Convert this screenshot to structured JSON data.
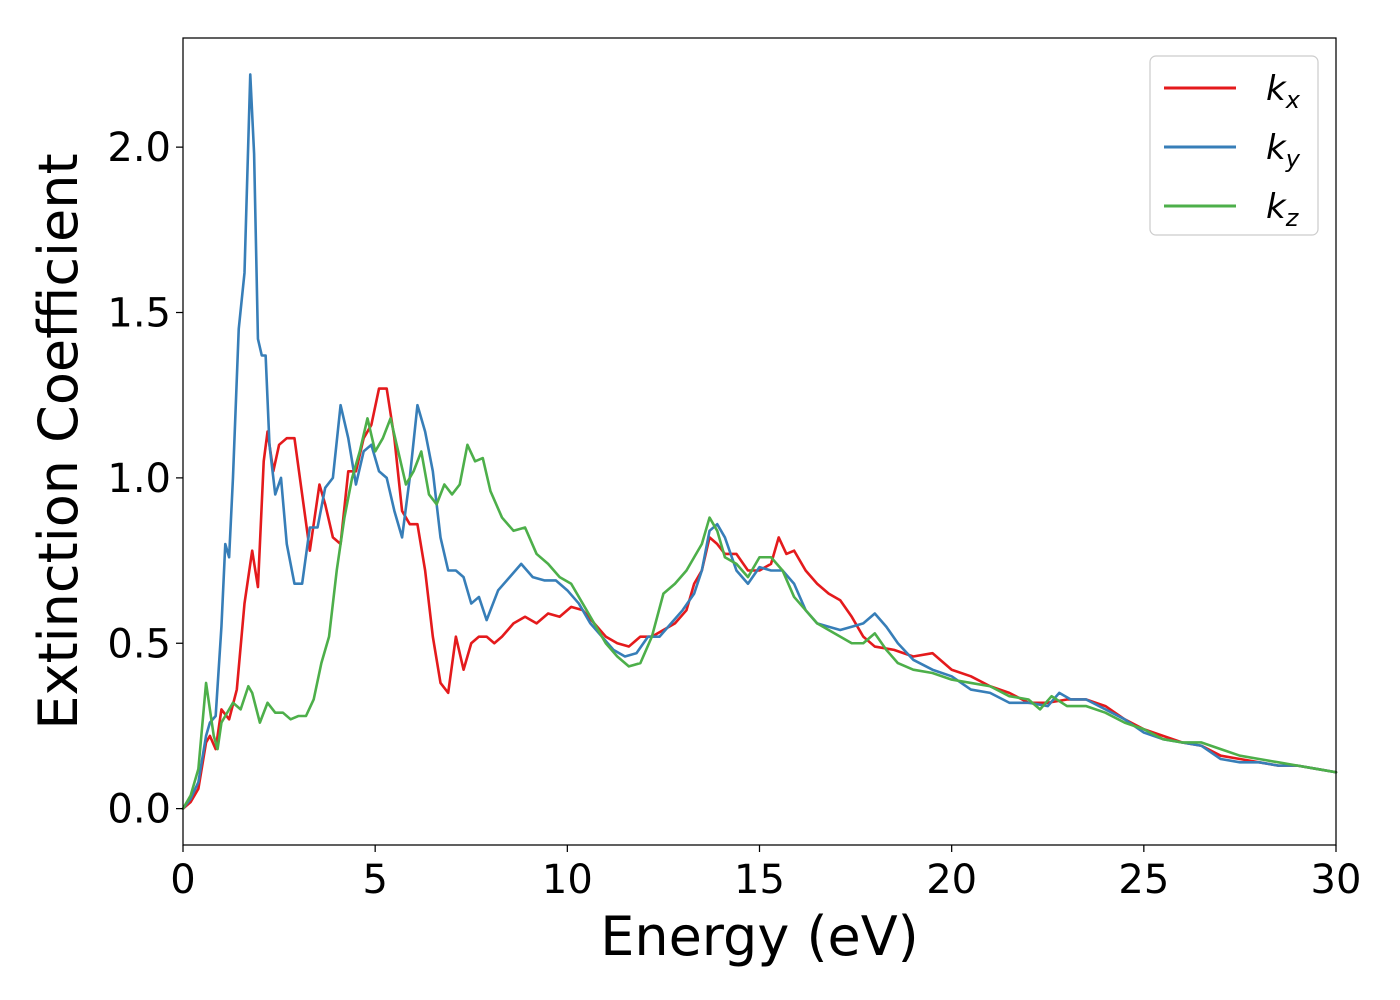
{
  "chart_data": {
    "type": "line",
    "title": "",
    "xlabel": "Energy (eV)",
    "ylabel": "Extinction Coefficient",
    "xlim": [
      0,
      30
    ],
    "ylim": [
      -0.11,
      2.33
    ],
    "xticks": [
      "0",
      "5",
      "10",
      "15",
      "20",
      "25",
      "30"
    ],
    "yticks": [
      "0.0",
      "0.5",
      "1.0",
      "1.5",
      "2.0"
    ],
    "grid": false,
    "legend_position": "top-right",
    "series": [
      {
        "name": "k",
        "name_subscript": "x",
        "color": "#e41a1c",
        "x": [
          0.0,
          0.2,
          0.4,
          0.6,
          0.7,
          0.85,
          1.0,
          1.2,
          1.4,
          1.6,
          1.8,
          1.95,
          2.1,
          2.2,
          2.35,
          2.5,
          2.7,
          2.9,
          3.1,
          3.3,
          3.55,
          3.7,
          3.9,
          4.1,
          4.3,
          4.5,
          4.7,
          4.9,
          5.1,
          5.3,
          5.5,
          5.7,
          5.9,
          6.1,
          6.3,
          6.5,
          6.7,
          6.9,
          7.1,
          7.3,
          7.5,
          7.7,
          7.9,
          8.1,
          8.3,
          8.6,
          8.9,
          9.2,
          9.5,
          9.8,
          10.1,
          10.4,
          10.7,
          11.0,
          11.3,
          11.6,
          11.9,
          12.2,
          12.5,
          12.8,
          13.1,
          13.3,
          13.5,
          13.7,
          13.9,
          14.1,
          14.4,
          14.7,
          15.0,
          15.3,
          15.5,
          15.7,
          15.9,
          16.2,
          16.5,
          16.8,
          17.1,
          17.4,
          17.7,
          18.0,
          18.5,
          19.0,
          19.5,
          20.0,
          20.5,
          21.0,
          21.5,
          22.0,
          22.5,
          23.0,
          23.5,
          24.0,
          24.5,
          25.0,
          25.5,
          26.0,
          26.5,
          27.0,
          27.5,
          28.0,
          28.5,
          29.0,
          29.5,
          30.0
        ],
        "y": [
          0.0,
          0.02,
          0.06,
          0.2,
          0.22,
          0.18,
          0.3,
          0.27,
          0.36,
          0.62,
          0.78,
          0.67,
          1.05,
          1.14,
          1.02,
          1.1,
          1.12,
          1.12,
          0.95,
          0.78,
          0.98,
          0.92,
          0.82,
          0.8,
          1.02,
          1.02,
          1.12,
          1.16,
          1.27,
          1.27,
          1.12,
          0.9,
          0.86,
          0.86,
          0.72,
          0.52,
          0.38,
          0.35,
          0.52,
          0.42,
          0.5,
          0.52,
          0.52,
          0.5,
          0.52,
          0.56,
          0.58,
          0.56,
          0.59,
          0.58,
          0.61,
          0.6,
          0.56,
          0.52,
          0.5,
          0.49,
          0.52,
          0.52,
          0.54,
          0.56,
          0.6,
          0.68,
          0.72,
          0.82,
          0.8,
          0.77,
          0.77,
          0.72,
          0.72,
          0.74,
          0.82,
          0.77,
          0.78,
          0.72,
          0.68,
          0.65,
          0.63,
          0.58,
          0.52,
          0.49,
          0.48,
          0.46,
          0.47,
          0.42,
          0.4,
          0.37,
          0.35,
          0.32,
          0.32,
          0.33,
          0.33,
          0.31,
          0.27,
          0.24,
          0.22,
          0.2,
          0.19,
          0.16,
          0.15,
          0.14,
          0.13,
          0.13,
          0.12,
          0.11
        ]
      },
      {
        "name": "k",
        "name_subscript": "y",
        "color": "#377eb8",
        "x": [
          0.0,
          0.2,
          0.4,
          0.6,
          0.7,
          0.85,
          1.0,
          1.1,
          1.2,
          1.3,
          1.45,
          1.6,
          1.75,
          1.85,
          1.95,
          2.05,
          2.15,
          2.25,
          2.4,
          2.55,
          2.7,
          2.9,
          3.1,
          3.3,
          3.5,
          3.7,
          3.9,
          4.1,
          4.3,
          4.5,
          4.7,
          4.9,
          5.1,
          5.3,
          5.5,
          5.7,
          5.9,
          6.1,
          6.3,
          6.5,
          6.7,
          6.9,
          7.1,
          7.3,
          7.5,
          7.7,
          7.9,
          8.2,
          8.5,
          8.8,
          9.1,
          9.4,
          9.7,
          10.0,
          10.3,
          10.6,
          10.9,
          11.2,
          11.5,
          11.8,
          12.1,
          12.4,
          12.7,
          13.0,
          13.3,
          13.5,
          13.7,
          13.9,
          14.1,
          14.4,
          14.7,
          15.0,
          15.3,
          15.6,
          15.9,
          16.2,
          16.5,
          16.8,
          17.1,
          17.4,
          17.7,
          18.0,
          18.3,
          18.6,
          19.0,
          19.5,
          20.0,
          20.5,
          21.0,
          21.5,
          22.0,
          22.5,
          22.8,
          23.1,
          23.5,
          24.0,
          24.5,
          25.0,
          25.5,
          26.0,
          26.5,
          27.0,
          27.5,
          28.0,
          28.5,
          29.0,
          29.5,
          30.0
        ],
        "y": [
          0.0,
          0.03,
          0.08,
          0.22,
          0.26,
          0.28,
          0.55,
          0.8,
          0.76,
          1.0,
          1.45,
          1.62,
          2.22,
          1.98,
          1.42,
          1.37,
          1.37,
          1.1,
          0.95,
          1.0,
          0.8,
          0.68,
          0.68,
          0.85,
          0.85,
          0.97,
          1.0,
          1.22,
          1.12,
          0.98,
          1.08,
          1.1,
          1.02,
          1.0,
          0.9,
          0.82,
          1.0,
          1.22,
          1.14,
          1.02,
          0.82,
          0.72,
          0.72,
          0.7,
          0.62,
          0.64,
          0.57,
          0.66,
          0.7,
          0.74,
          0.7,
          0.69,
          0.69,
          0.66,
          0.62,
          0.56,
          0.52,
          0.48,
          0.46,
          0.47,
          0.52,
          0.52,
          0.56,
          0.6,
          0.65,
          0.72,
          0.84,
          0.86,
          0.82,
          0.72,
          0.68,
          0.73,
          0.72,
          0.72,
          0.68,
          0.6,
          0.56,
          0.55,
          0.54,
          0.55,
          0.56,
          0.59,
          0.55,
          0.5,
          0.45,
          0.42,
          0.4,
          0.36,
          0.35,
          0.32,
          0.32,
          0.31,
          0.35,
          0.33,
          0.33,
          0.3,
          0.27,
          0.23,
          0.21,
          0.2,
          0.19,
          0.15,
          0.14,
          0.14,
          0.13,
          0.13,
          0.12,
          0.11
        ]
      },
      {
        "name": "k",
        "name_subscript": "z",
        "color": "#4daf4a",
        "x": [
          0.0,
          0.2,
          0.4,
          0.6,
          0.7,
          0.8,
          0.9,
          1.0,
          1.1,
          1.3,
          1.5,
          1.7,
          1.8,
          2.0,
          2.2,
          2.4,
          2.6,
          2.8,
          3.0,
          3.2,
          3.4,
          3.6,
          3.8,
          4.0,
          4.2,
          4.4,
          4.6,
          4.8,
          5.0,
          5.2,
          5.4,
          5.6,
          5.8,
          6.0,
          6.2,
          6.4,
          6.6,
          6.8,
          7.0,
          7.2,
          7.4,
          7.6,
          7.8,
          8.0,
          8.3,
          8.6,
          8.9,
          9.2,
          9.5,
          9.8,
          10.1,
          10.4,
          10.7,
          11.0,
          11.3,
          11.6,
          11.9,
          12.2,
          12.5,
          12.8,
          13.1,
          13.3,
          13.5,
          13.7,
          13.9,
          14.1,
          14.4,
          14.7,
          15.0,
          15.3,
          15.6,
          15.9,
          16.2,
          16.5,
          16.8,
          17.1,
          17.4,
          17.7,
          18.0,
          18.3,
          18.6,
          19.0,
          19.5,
          20.0,
          20.5,
          21.0,
          21.5,
          22.0,
          22.3,
          22.6,
          23.0,
          23.5,
          24.0,
          24.5,
          25.0,
          25.5,
          26.0,
          26.5,
          27.0,
          27.5,
          28.0,
          28.5,
          29.0,
          29.5,
          30.0
        ],
        "y": [
          0.0,
          0.04,
          0.12,
          0.38,
          0.3,
          0.22,
          0.18,
          0.26,
          0.28,
          0.32,
          0.3,
          0.37,
          0.35,
          0.26,
          0.32,
          0.29,
          0.29,
          0.27,
          0.28,
          0.28,
          0.33,
          0.44,
          0.52,
          0.72,
          0.88,
          1.0,
          1.08,
          1.18,
          1.08,
          1.12,
          1.18,
          1.08,
          0.98,
          1.02,
          1.08,
          0.95,
          0.92,
          0.98,
          0.95,
          0.98,
          1.1,
          1.05,
          1.06,
          0.96,
          0.88,
          0.84,
          0.85,
          0.77,
          0.74,
          0.7,
          0.68,
          0.62,
          0.56,
          0.5,
          0.46,
          0.43,
          0.44,
          0.52,
          0.65,
          0.68,
          0.72,
          0.76,
          0.8,
          0.88,
          0.84,
          0.76,
          0.74,
          0.7,
          0.76,
          0.76,
          0.72,
          0.64,
          0.6,
          0.56,
          0.54,
          0.52,
          0.5,
          0.5,
          0.53,
          0.48,
          0.44,
          0.42,
          0.41,
          0.39,
          0.38,
          0.37,
          0.34,
          0.33,
          0.3,
          0.34,
          0.31,
          0.31,
          0.29,
          0.26,
          0.24,
          0.21,
          0.2,
          0.2,
          0.18,
          0.16,
          0.15,
          0.14,
          0.13,
          0.12,
          0.11
        ]
      }
    ]
  }
}
